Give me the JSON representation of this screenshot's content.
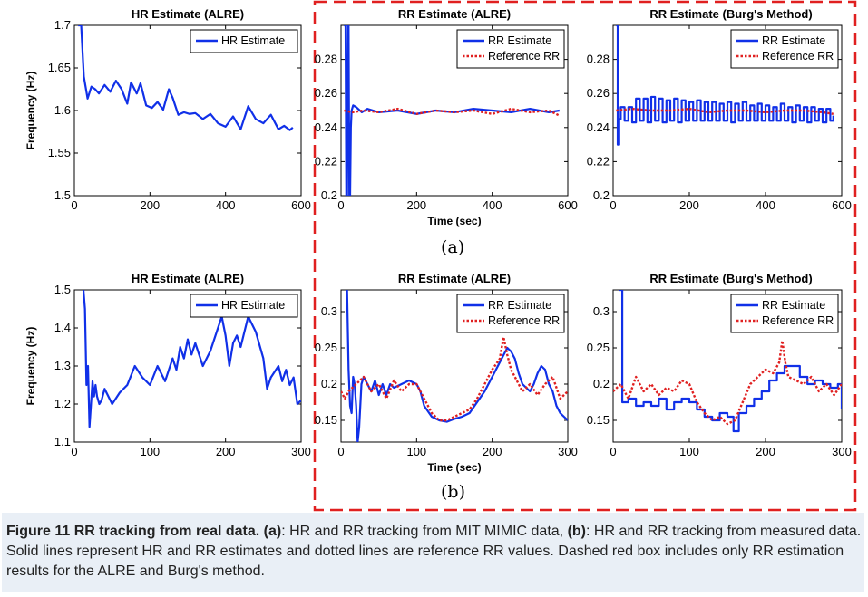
{
  "figure": {
    "label_a": "(a)",
    "label_b": "(b)",
    "box_color": "#e02020",
    "estimate_color": "#1030e8",
    "reference_color": "#e02020"
  },
  "caption": {
    "figure_number": "Figure 11",
    "title": "RR tracking from real data.",
    "part_a_tag": "(a)",
    "part_a_text": ": HR and RR tracking from MIT MIMIC data, ",
    "part_b_tag": "(b)",
    "part_b_text": ": HR and RR tracking from measured data. Solid lines represent HR and RR estimates and dotted lines are reference RR values. Dashed red box includes only RR estimation results for the ALRE and Burg's method."
  },
  "chart_data": [
    {
      "id": "a1",
      "type": "line",
      "title": "HR Estimate (ALRE)",
      "xlabel": "",
      "ylabel": "Frequency (Hz)",
      "xlim": [
        0,
        600
      ],
      "ylim": [
        1.5,
        1.7
      ],
      "xticks": [
        "0",
        "200",
        "400",
        "600"
      ],
      "yticks": [
        "1.5",
        "1.55",
        "1.6",
        "1.65",
        "1.7"
      ],
      "legend": "top-right",
      "series": [
        {
          "name": "HR Estimate",
          "style": "solid",
          "x": [
            10,
            18,
            25,
            35,
            45,
            55,
            65,
            80,
            95,
            110,
            125,
            140,
            150,
            165,
            175,
            190,
            205,
            220,
            235,
            250,
            260,
            275,
            290,
            305,
            320,
            340,
            360,
            380,
            400,
            420,
            440,
            460,
            480,
            500,
            520,
            540,
            555,
            570,
            578
          ],
          "y": [
            1.7,
            1.7,
            1.64,
            1.614,
            1.628,
            1.625,
            1.62,
            1.63,
            1.622,
            1.635,
            1.625,
            1.608,
            1.633,
            1.62,
            1.632,
            1.606,
            1.603,
            1.61,
            1.601,
            1.625,
            1.615,
            1.595,
            1.598,
            1.596,
            1.597,
            1.59,
            1.596,
            1.585,
            1.581,
            1.593,
            1.578,
            1.605,
            1.59,
            1.585,
            1.595,
            1.578,
            1.582,
            1.577,
            1.58
          ]
        }
      ]
    },
    {
      "id": "a2",
      "type": "line",
      "title": "RR Estimate (ALRE)",
      "xlabel": "Time (sec)",
      "ylabel": "",
      "xlim": [
        0,
        600
      ],
      "ylim": [
        0.2,
        0.3
      ],
      "xticks": [
        "0",
        "200",
        "400",
        "600"
      ],
      "yticks": [
        "0.2",
        "0.22",
        "0.24",
        "0.26",
        "0.28"
      ],
      "legend": "top-right",
      "series": [
        {
          "name": "RR Estimate",
          "style": "solid",
          "x": [
            8,
            12,
            14,
            16,
            18,
            20,
            22,
            24,
            26,
            28,
            32,
            40,
            55,
            70,
            100,
            150,
            200,
            250,
            300,
            350,
            400,
            450,
            500,
            550,
            578
          ],
          "y": [
            0.3,
            0.3,
            0.2,
            0.2,
            0.3,
            0.3,
            0.2,
            0.2,
            0.24,
            0.25,
            0.253,
            0.252,
            0.249,
            0.251,
            0.249,
            0.25,
            0.248,
            0.25,
            0.249,
            0.251,
            0.25,
            0.249,
            0.251,
            0.249,
            0.25
          ]
        },
        {
          "name": "Reference RR",
          "style": "dotted",
          "x": [
            8,
            30,
            60,
            100,
            150,
            200,
            250,
            300,
            350,
            400,
            450,
            500,
            550,
            578
          ],
          "y": [
            0.25,
            0.249,
            0.25,
            0.249,
            0.251,
            0.248,
            0.25,
            0.249,
            0.25,
            0.248,
            0.251,
            0.249,
            0.25,
            0.247
          ]
        }
      ]
    },
    {
      "id": "a3",
      "type": "line",
      "title": "RR Estimate (Burg's Method)",
      "xlabel": "",
      "ylabel": "",
      "xlim": [
        0,
        600
      ],
      "ylim": [
        0.2,
        0.3
      ],
      "xticks": [
        "0",
        "200",
        "400",
        "600"
      ],
      "yticks": [
        "0.2",
        "0.22",
        "0.24",
        "0.26",
        "0.28"
      ],
      "legend": "top-right",
      "series": [
        {
          "name": "RR Estimate",
          "style": "step",
          "x": [
            8,
            12,
            16,
            20,
            30,
            40,
            50,
            60,
            70,
            80,
            90,
            100,
            110,
            120,
            130,
            140,
            150,
            160,
            170,
            180,
            190,
            200,
            210,
            220,
            230,
            240,
            250,
            260,
            270,
            280,
            290,
            300,
            310,
            320,
            330,
            340,
            350,
            360,
            370,
            380,
            390,
            400,
            410,
            420,
            430,
            440,
            450,
            460,
            470,
            480,
            490,
            500,
            510,
            520,
            530,
            540,
            550,
            560,
            570,
            578
          ],
          "y": [
            0.3,
            0.23,
            0.245,
            0.252,
            0.244,
            0.252,
            0.243,
            0.257,
            0.244,
            0.257,
            0.243,
            0.258,
            0.244,
            0.257,
            0.243,
            0.256,
            0.244,
            0.257,
            0.243,
            0.256,
            0.244,
            0.255,
            0.244,
            0.256,
            0.244,
            0.255,
            0.244,
            0.255,
            0.244,
            0.254,
            0.244,
            0.255,
            0.243,
            0.254,
            0.244,
            0.255,
            0.244,
            0.253,
            0.244,
            0.254,
            0.244,
            0.253,
            0.244,
            0.252,
            0.244,
            0.254,
            0.244,
            0.252,
            0.243,
            0.253,
            0.244,
            0.252,
            0.243,
            0.252,
            0.244,
            0.251,
            0.243,
            0.251,
            0.244,
            0.247
          ]
        },
        {
          "name": "Reference RR",
          "style": "dotted",
          "x": [
            8,
            50,
            100,
            150,
            200,
            250,
            300,
            350,
            400,
            450,
            500,
            550,
            578
          ],
          "y": [
            0.25,
            0.251,
            0.25,
            0.25,
            0.251,
            0.249,
            0.25,
            0.25,
            0.249,
            0.25,
            0.25,
            0.249,
            0.248
          ]
        }
      ]
    },
    {
      "id": "b1",
      "type": "line",
      "title": "HR Estimate (ALRE)",
      "xlabel": "",
      "ylabel": "Frequency (Hz)",
      "xlim": [
        0,
        300
      ],
      "ylim": [
        1.1,
        1.5
      ],
      "xticks": [
        "0",
        "100",
        "200",
        "300"
      ],
      "yticks": [
        "1.1",
        "1.2",
        "1.3",
        "1.4",
        "1.5"
      ],
      "legend": "top-right",
      "series": [
        {
          "name": "HR Estimate",
          "style": "solid",
          "x": [
            12,
            14,
            16,
            18,
            20,
            22,
            24,
            26,
            28,
            30,
            33,
            36,
            40,
            45,
            50,
            60,
            70,
            80,
            90,
            100,
            110,
            120,
            130,
            135,
            140,
            145,
            150,
            155,
            160,
            170,
            180,
            190,
            195,
            200,
            205,
            210,
            215,
            220,
            230,
            240,
            250,
            255,
            260,
            270,
            275,
            280,
            285,
            290,
            295,
            300
          ],
          "y": [
            1.5,
            1.45,
            1.25,
            1.3,
            1.14,
            1.2,
            1.26,
            1.22,
            1.25,
            1.22,
            1.2,
            1.21,
            1.24,
            1.22,
            1.2,
            1.23,
            1.25,
            1.3,
            1.27,
            1.25,
            1.3,
            1.26,
            1.32,
            1.29,
            1.35,
            1.32,
            1.37,
            1.33,
            1.36,
            1.3,
            1.34,
            1.4,
            1.43,
            1.38,
            1.3,
            1.36,
            1.38,
            1.35,
            1.43,
            1.39,
            1.32,
            1.24,
            1.27,
            1.3,
            1.26,
            1.29,
            1.25,
            1.27,
            1.2,
            1.21
          ]
        }
      ]
    },
    {
      "id": "b2",
      "type": "line",
      "title": "RR Estimate (ALRE)",
      "xlabel": "Time (sec)",
      "ylabel": "",
      "xlim": [
        0,
        300
      ],
      "ylim": [
        0.12,
        0.33
      ],
      "xticks": [
        "0",
        "100",
        "200",
        "300"
      ],
      "yticks": [
        "0.15",
        "0.2",
        "0.25",
        "0.3"
      ],
      "legend": "top-right",
      "series": [
        {
          "name": "RR Estimate",
          "style": "solid",
          "x": [
            6,
            8,
            10,
            12,
            14,
            16,
            18,
            20,
            22,
            24,
            27,
            30,
            35,
            40,
            45,
            50,
            55,
            60,
            65,
            70,
            80,
            90,
            100,
            105,
            110,
            120,
            130,
            140,
            150,
            160,
            170,
            180,
            190,
            200,
            210,
            215,
            220,
            225,
            230,
            235,
            240,
            245,
            250,
            255,
            260,
            265,
            270,
            275,
            280,
            285,
            290,
            295,
            300
          ],
          "y": [
            0.33,
            0.33,
            0.22,
            0.17,
            0.16,
            0.21,
            0.2,
            0.17,
            0.12,
            0.14,
            0.2,
            0.21,
            0.2,
            0.19,
            0.205,
            0.185,
            0.2,
            0.185,
            0.2,
            0.195,
            0.2,
            0.205,
            0.2,
            0.19,
            0.17,
            0.155,
            0.15,
            0.148,
            0.152,
            0.155,
            0.16,
            0.175,
            0.19,
            0.21,
            0.23,
            0.24,
            0.25,
            0.245,
            0.235,
            0.215,
            0.2,
            0.195,
            0.19,
            0.2,
            0.215,
            0.225,
            0.22,
            0.2,
            0.19,
            0.17,
            0.16,
            0.155,
            0.15
          ]
        },
        {
          "name": "Reference RR",
          "style": "dotted",
          "x": [
            0,
            5,
            10,
            20,
            30,
            40,
            50,
            60,
            70,
            80,
            90,
            100,
            110,
            120,
            130,
            140,
            150,
            160,
            170,
            180,
            190,
            200,
            210,
            215,
            220,
            225,
            230,
            240,
            250,
            260,
            270,
            280,
            290,
            300
          ],
          "y": [
            0.19,
            0.18,
            0.19,
            0.2,
            0.21,
            0.19,
            0.2,
            0.18,
            0.205,
            0.19,
            0.2,
            0.2,
            0.18,
            0.16,
            0.15,
            0.15,
            0.155,
            0.16,
            0.165,
            0.18,
            0.2,
            0.22,
            0.235,
            0.265,
            0.24,
            0.22,
            0.21,
            0.19,
            0.2,
            0.185,
            0.2,
            0.21,
            0.18,
            0.19
          ]
        }
      ]
    },
    {
      "id": "b3",
      "type": "line",
      "title": "RR Estimate (Burg's Method)",
      "xlabel": "",
      "ylabel": "",
      "xlim": [
        0,
        300
      ],
      "ylim": [
        0.12,
        0.33
      ],
      "xticks": [
        "0",
        "100",
        "200",
        "300"
      ],
      "yticks": [
        "0.15",
        "0.2",
        "0.25",
        "0.3"
      ],
      "legend": "top-right",
      "series": [
        {
          "name": "RR Estimate",
          "style": "step",
          "x": [
            8,
            12,
            20,
            30,
            40,
            50,
            60,
            70,
            80,
            90,
            100,
            110,
            120,
            130,
            140,
            150,
            158,
            165,
            175,
            185,
            195,
            205,
            215,
            225,
            235,
            245,
            255,
            265,
            275,
            285,
            295,
            300
          ],
          "y": [
            0.33,
            0.175,
            0.18,
            0.17,
            0.175,
            0.17,
            0.18,
            0.165,
            0.175,
            0.18,
            0.175,
            0.165,
            0.155,
            0.15,
            0.16,
            0.155,
            0.135,
            0.16,
            0.17,
            0.18,
            0.19,
            0.205,
            0.215,
            0.225,
            0.225,
            0.21,
            0.2,
            0.205,
            0.2,
            0.195,
            0.2,
            0.165
          ]
        },
        {
          "name": "Reference RR",
          "style": "dotted",
          "x": [
            0,
            10,
            20,
            30,
            40,
            50,
            60,
            70,
            80,
            90,
            100,
            110,
            120,
            130,
            140,
            150,
            160,
            170,
            180,
            190,
            200,
            210,
            218,
            222,
            226,
            230,
            240,
            250,
            260,
            270,
            280,
            290,
            300
          ],
          "y": [
            0.19,
            0.2,
            0.18,
            0.21,
            0.19,
            0.2,
            0.185,
            0.195,
            0.19,
            0.205,
            0.2,
            0.175,
            0.16,
            0.15,
            0.155,
            0.145,
            0.15,
            0.175,
            0.2,
            0.21,
            0.22,
            0.215,
            0.23,
            0.26,
            0.23,
            0.21,
            0.205,
            0.2,
            0.21,
            0.19,
            0.2,
            0.185,
            0.2
          ]
        }
      ]
    }
  ]
}
